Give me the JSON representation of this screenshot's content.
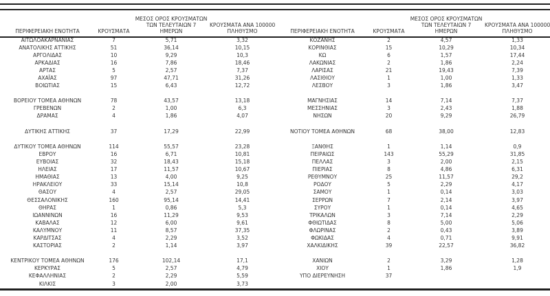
{
  "page": {
    "background": "#ffffff",
    "text_color": "#333333",
    "line_color": "#1f1f1f"
  },
  "table": {
    "headers": {
      "region": "ΠΕΡΙΦΕΡΕΙΑΚΗ ΕΝΟΤΗΤΑ",
      "cases": "ΚΡΟΥΣΜΑΤΑ",
      "avg7_line1": "ΜΕΣΟΣ ΟΡΟΣ ΚΡΟΥΣΜΑΤΩΝ",
      "avg7_line2": "ΤΩΝ ΤΕΛΕΥΤΑΙΩΝ 7",
      "avg7_line3": "ΗΜΕΡΩΝ",
      "per100k_line1": "ΚΡΟΥΣΜΑΤΑ ΑΝΑ 100000",
      "per100k_line2": "ΠΛΗΘΥΣΜΟ"
    },
    "left_rows": [
      [
        "ΑΙΤΩΛΟΑΚΑΡΝΑΝΙΑΣ",
        "7",
        "5,71",
        "3,32"
      ],
      [
        "ΑΝΑΤΟΛΙΚΗΣ ΑΤΤΙΚΗΣ",
        "51",
        "36,14",
        "10,15"
      ],
      [
        "ΑΡΓΟΛΙΔΑΣ",
        "10",
        "9,29",
        "10,3"
      ],
      [
        "ΑΡΚΑΔΙΑΣ",
        "16",
        "7,86",
        "18,46"
      ],
      [
        "ΑΡΤΑΣ",
        "5",
        "2,57",
        "7,37"
      ],
      [
        "ΑΧΑΪΑΣ",
        "97",
        "47,71",
        "31,26"
      ],
      [
        "ΒΟΙΩΤΙΑΣ",
        "15",
        "6,43",
        "12,72"
      ],
      null,
      [
        "ΒΟΡΕΙΟΥ ΤΟΜΕΑ ΑΘΗΝΩΝ",
        "78",
        "43,57",
        "13,18"
      ],
      [
        "ΓΡΕΒΕΝΩΝ",
        "2",
        "1,00",
        "6,3"
      ],
      [
        "ΔΡΑΜΑΣ",
        "4",
        "1,86",
        "4,07"
      ],
      null,
      [
        "ΔΥΤΙΚΗΣ ΑΤΤΙΚΗΣ",
        "37",
        "17,29",
        "22,99"
      ],
      null,
      [
        "ΔΥΤΙΚΟΥ ΤΟΜΕΑ ΑΘΗΝΩΝ",
        "114",
        "55,57",
        "23,28"
      ],
      [
        "ΕΒΡΟΥ",
        "16",
        "6,71",
        "10,81"
      ],
      [
        "ΕΥΒΟΙΑΣ",
        "32",
        "18,43",
        "15,18"
      ],
      [
        "ΗΛΕΙΑΣ",
        "17",
        "11,57",
        "10,67"
      ],
      [
        "ΗΜΑΘΙΑΣ",
        "13",
        "4,00",
        "9,25"
      ],
      [
        "ΗΡΑΚΛΕΙΟΥ",
        "33",
        "15,14",
        "10,8"
      ],
      [
        "ΘΑΣΟΥ",
        "4",
        "2,57",
        "29,05"
      ],
      [
        "ΘΕΣΣΑΛΟΝΙΚΗΣ",
        "160",
        "95,14",
        "14,41"
      ],
      [
        "ΘΗΡΑΣ",
        "1",
        "0,86",
        "5,3"
      ],
      [
        "ΙΩΑΝΝΙΝΩΝ",
        "16",
        "11,29",
        "9,53"
      ],
      [
        "ΚΑΒΑΛΑΣ",
        "12",
        "6,00",
        "9,61"
      ],
      [
        "ΚΑΛΥΜΝΟΥ",
        "11",
        "8,57",
        "37,35"
      ],
      [
        "ΚΑΡΔΙΤΣΑΣ",
        "4",
        "2,29",
        "3,52"
      ],
      [
        "ΚΑΣΤΟΡΙΑΣ",
        "2",
        "1,14",
        "3,97"
      ],
      null,
      [
        "ΚΕΝΤΡΙΚΟΥ ΤΟΜΕΑ ΑΘΗΝΩΝ",
        "176",
        "102,14",
        "17,1"
      ],
      [
        "ΚΕΡΚΥΡΑΣ",
        "5",
        "2,57",
        "4,79"
      ],
      [
        "ΚΕΦΑΛΛΗΝΙΑΣ",
        "2",
        "2,29",
        "5,59"
      ],
      [
        "ΚΙΛΚΙΣ",
        "3",
        "2,00",
        "3,73"
      ]
    ],
    "right_rows": [
      [
        "ΚΟΖΑΝΗΣ",
        "2",
        "4,57",
        "1,33"
      ],
      [
        "ΚΟΡΙΝΘΙΑΣ",
        "15",
        "10,29",
        "10,34"
      ],
      [
        "ΚΩ",
        "6",
        "1,57",
        "17,44"
      ],
      [
        "ΛΑΚΩΝΙΑΣ",
        "2",
        "1,86",
        "2,24"
      ],
      [
        "ΛΑΡΙΣΑΣ",
        "21",
        "19,43",
        "7,39"
      ],
      [
        "ΛΑΣΙΘΙΟΥ",
        "1",
        "1,00",
        "1,33"
      ],
      [
        "ΛΕΣΒΟΥ",
        "3",
        "1,86",
        "3,47"
      ],
      null,
      [
        "ΜΑΓΝΗΣΙΑΣ",
        "14",
        "7,14",
        "7,37"
      ],
      [
        "ΜΕΣΣΗΝΙΑΣ",
        "3",
        "2,43",
        "1,88"
      ],
      [
        "ΝΗΣΩΝ",
        "20",
        "9,29",
        "26,79"
      ],
      null,
      [
        "ΝΟΤΙΟΥ ΤΟΜΕΑ ΑΘΗΝΩΝ",
        "68",
        "38,00",
        "12,83"
      ],
      null,
      [
        "ΞΑΝΘΗΣ",
        "1",
        "1,14",
        "0,9"
      ],
      [
        "ΠΕΙΡΑΙΩΣ",
        "143",
        "55,29",
        "31,85"
      ],
      [
        "ΠΕΛΛΑΣ",
        "3",
        "2,00",
        "2,15"
      ],
      [
        "ΠΙΕΡΙΑΣ",
        "8",
        "4,86",
        "6,31"
      ],
      [
        "ΡΕΘΥΜΝΟΥ",
        "25",
        "11,57",
        "29,2"
      ],
      [
        "ΡΟΔΟΥ",
        "5",
        "2,29",
        "4,17"
      ],
      [
        "ΣΑΜΟΥ",
        "1",
        "0,14",
        "3,03"
      ],
      [
        "ΣΕΡΡΩΝ",
        "7",
        "2,14",
        "3,97"
      ],
      [
        "ΣΥΡΟΥ",
        "1",
        "0,14",
        "4,65"
      ],
      [
        "ΤΡΙΚΑΛΩΝ",
        "3",
        "7,14",
        "2,29"
      ],
      [
        "ΦΘΙΩΤΙΔΑΣ",
        "8",
        "5,00",
        "5,06"
      ],
      [
        "ΦΛΩΡΙΝΑΣ",
        "2",
        "0,43",
        "3,89"
      ],
      [
        "ΦΩΚΙΔΑΣ",
        "4",
        "0,71",
        "9,91"
      ],
      [
        "ΧΑΛΚΙΔΙΚΗΣ",
        "39",
        "22,57",
        "36,82"
      ],
      null,
      [
        "ΧΑΝΙΩΝ",
        "2",
        "3,29",
        "1,28"
      ],
      [
        "ΧΙΟΥ",
        "1",
        "1,86",
        "1,9"
      ],
      [
        "ΥΠΟ ΔΙΕΡΕΥΝΗΣΗ",
        "37",
        "",
        ""
      ],
      null
    ]
  }
}
